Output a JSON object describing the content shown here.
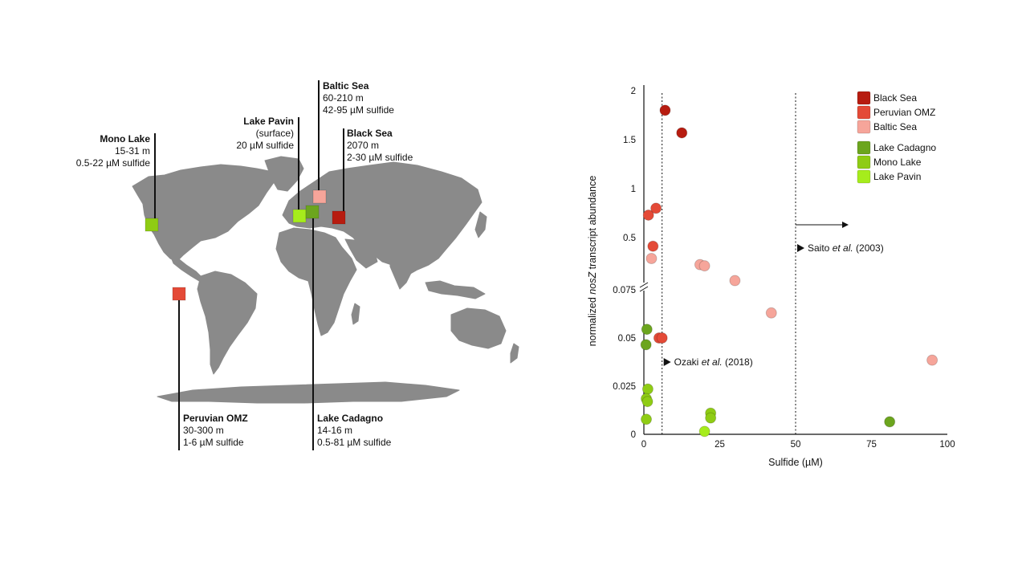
{
  "map": {
    "sites": [
      {
        "key": "mono",
        "name": "Mono Lake",
        "line1": "15-31 m",
        "line2": "0.5-22 µM sulfide",
        "color": "#8fcc14"
      },
      {
        "key": "pavin",
        "name": "Lake Pavin",
        "line1": "(surface)",
        "line2": "20 µM sulfide",
        "color": "#a6ec1c"
      },
      {
        "key": "baltic",
        "name": "Baltic Sea",
        "line1": "60-210 m",
        "line2": "42-95 µM sulfide",
        "color": "#f6a59a"
      },
      {
        "key": "black",
        "name": "Black Sea",
        "line1": "2070 m",
        "line2": "2-30 µM sulfide",
        "color": "#b71c10"
      },
      {
        "key": "peru",
        "name": "Peruvian OMZ",
        "line1": "30-300 m",
        "line2": "1-6 µM sulfide",
        "color": "#e44a37"
      },
      {
        "key": "cadagno",
        "name": "Lake Cadagno",
        "line1": "14-16 m",
        "line2": "0.5-81 µM sulfide",
        "color": "#6ca51e"
      }
    ]
  },
  "chart_data": {
    "type": "scatter",
    "xlabel": "Sulfide (µM)",
    "ylabel_pre": "normalized ",
    "ylabel_italic": "nosZ",
    "ylabel_post": " transcript abundance",
    "xlim": [
      0,
      100
    ],
    "x_ticks": [
      0,
      25,
      50,
      75,
      100
    ],
    "y_axis_break": true,
    "y_upper_ticks": [
      "0.5",
      "1",
      "1.5",
      "2"
    ],
    "y_lower_ticks": [
      "0",
      "0.025",
      "0.05",
      "0.075"
    ],
    "series": [
      {
        "name": "Black Sea",
        "color": "#b71c10",
        "points": [
          [
            7,
            1.8
          ],
          [
            12.5,
            1.57
          ]
        ]
      },
      {
        "name": "Peruvian OMZ",
        "color": "#e44a37",
        "points": [
          [
            1.5,
            0.73
          ],
          [
            4,
            0.8
          ],
          [
            3,
            0.43
          ],
          [
            5,
            0.05
          ],
          [
            6,
            0.05
          ]
        ]
      },
      {
        "name": "Baltic Sea",
        "color": "#f6a59a",
        "points": [
          [
            2.5,
            0.33
          ],
          [
            18.5,
            0.28
          ],
          [
            20,
            0.27
          ],
          [
            30,
            0.15
          ],
          [
            42,
            0.063
          ],
          [
            95,
            0.0385
          ]
        ]
      },
      {
        "name": "Lake Cadagno",
        "color": "#6ca51e",
        "points": [
          [
            1,
            0.0545
          ],
          [
            0.7,
            0.0465
          ],
          [
            81,
            0.0065
          ]
        ]
      },
      {
        "name": "Mono Lake",
        "color": "#8fcc14",
        "points": [
          [
            1.3,
            0.0235
          ],
          [
            0.8,
            0.0185
          ],
          [
            1.2,
            0.017
          ],
          [
            0.8,
            0.0078
          ],
          [
            22,
            0.011
          ],
          [
            22,
            0.0085
          ]
        ]
      },
      {
        "name": "Lake Pavin",
        "color": "#a6ec1c",
        "points": [
          [
            20,
            0.0015
          ]
        ]
      }
    ],
    "annotations": [
      {
        "pre": "Saito ",
        "italic": "et al.",
        "post": " (2003)",
        "x": 50
      },
      {
        "pre": "Ozaki ",
        "italic": "et al.",
        "post": " (2018)",
        "x": 6
      }
    ]
  }
}
